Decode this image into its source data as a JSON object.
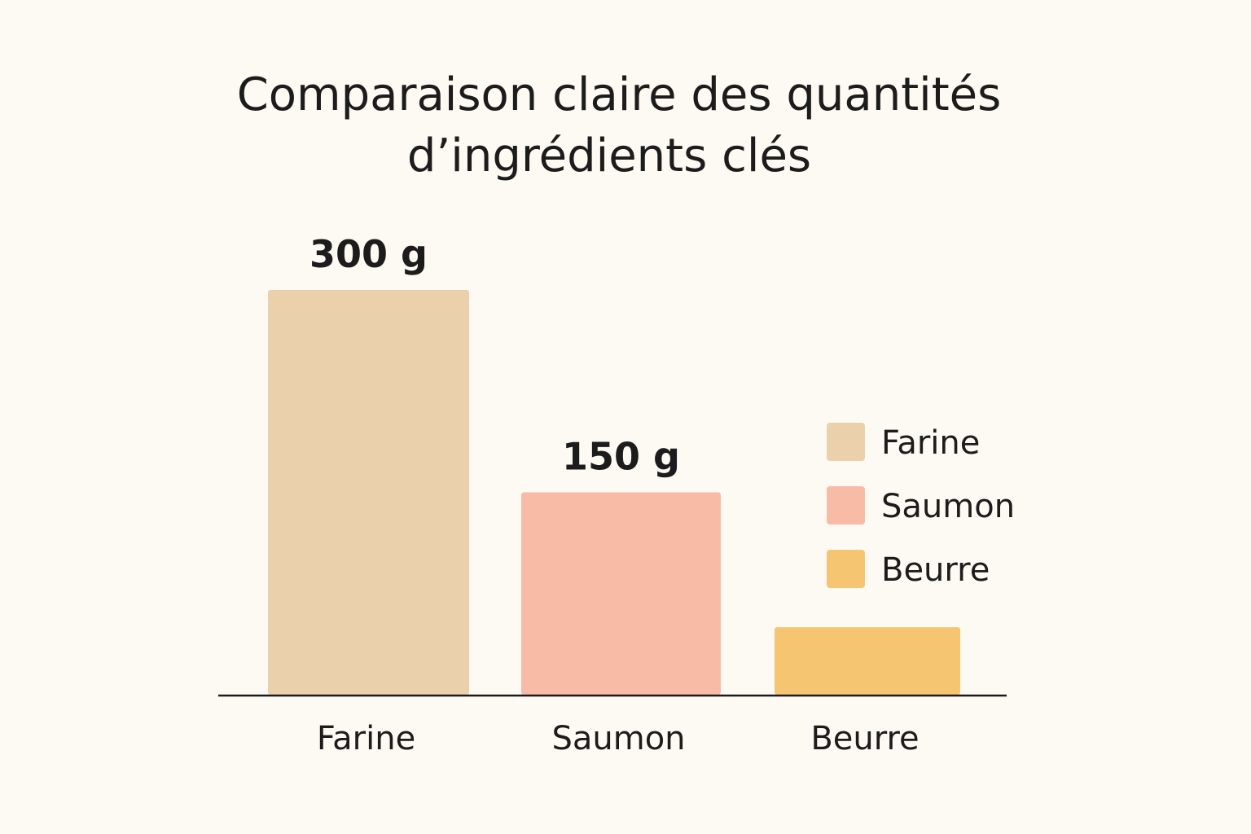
{
  "chart_data": {
    "type": "bar",
    "title": [
      "Comparaison claire des quantités",
      "d’ingrédients clés"
    ],
    "categories": [
      "Farine",
      "Saumon",
      "Beurre"
    ],
    "values": [
      300,
      150,
      50
    ],
    "value_labels": [
      "300 g",
      "150 g",
      ""
    ],
    "unit": "g",
    "colors": [
      "#ebd0ac",
      "#f7bba6",
      "#f5c571"
    ],
    "ylim": [
      0,
      300
    ],
    "grid": false,
    "legend": {
      "position": "right",
      "entries": [
        "Farine",
        "Saumon",
        "Beurre"
      ]
    },
    "xlabel": "",
    "ylabel": ""
  }
}
